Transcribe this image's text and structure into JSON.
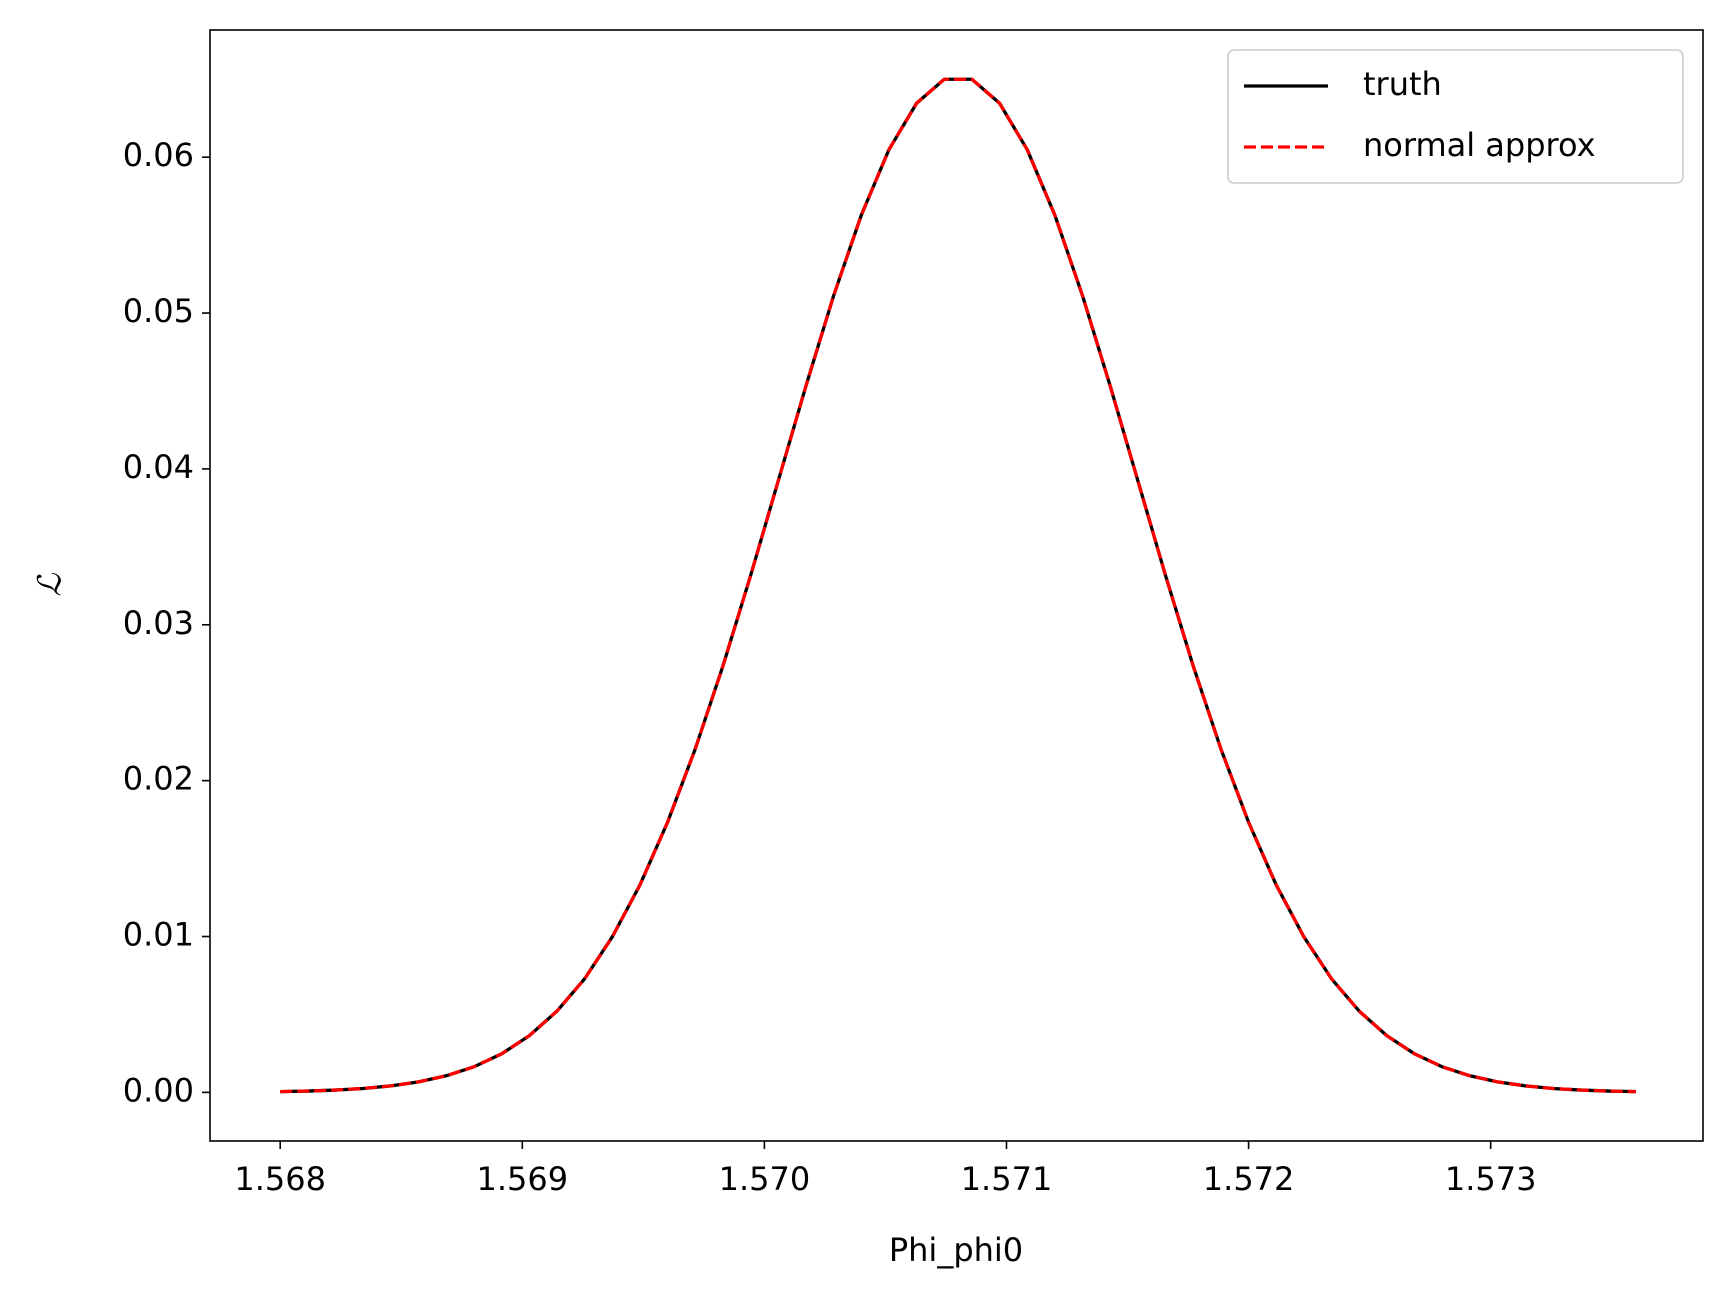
{
  "chart_data": {
    "type": "line",
    "xlabel": "Phi_phi0",
    "ylabel": "ℒ",
    "x": [
      1.568,
      1.5681143,
      1.5682286,
      1.5683429,
      1.5684571,
      1.5685714,
      1.5686857,
      1.5688,
      1.5689143,
      1.5690286,
      1.5691429,
      1.5692571,
      1.5693714,
      1.5694857,
      1.5696,
      1.5697143,
      1.5698286,
      1.5699429,
      1.5700571,
      1.5701714,
      1.5702857,
      1.5704,
      1.5705143,
      1.5706286,
      1.5707429,
      1.5708571,
      1.5709714,
      1.5710857,
      1.5712,
      1.5713143,
      1.5714286,
      1.5715429,
      1.5716571,
      1.5717714,
      1.5718857,
      1.572,
      1.5721143,
      1.5722286,
      1.5723429,
      1.5724571,
      1.5725714,
      1.5726857,
      1.5728,
      1.5729143,
      1.5730286,
      1.5731429,
      1.5732571,
      1.5733714,
      1.5734857,
      1.5736
    ],
    "series": [
      {
        "name": "truth",
        "color": "#000000",
        "dash": false,
        "values": [
          4.8e-05,
          8.5e-05,
          0.000148,
          0.000251,
          0.000417,
          0.000674,
          0.001064,
          0.00164,
          0.00247,
          0.00363,
          0.00521,
          0.00728,
          0.00997,
          0.0133,
          0.01733,
          0.02203,
          0.02735,
          0.03315,
          0.03923,
          0.04531,
          0.0511,
          0.05627,
          0.06048,
          0.06346,
          0.065,
          0.065,
          0.06346,
          0.06048,
          0.05627,
          0.0511,
          0.04531,
          0.03923,
          0.03315,
          0.02735,
          0.02203,
          0.01733,
          0.0133,
          0.00997,
          0.00728,
          0.00521,
          0.00363,
          0.00247,
          0.00164,
          0.001064,
          0.000674,
          0.000417,
          0.000251,
          0.000148,
          8.5e-05,
          4.8e-05
        ]
      },
      {
        "name": "normal approx",
        "color": "#ff0000",
        "dash": true,
        "values": [
          4.8e-05,
          8.5e-05,
          0.000148,
          0.000251,
          0.000417,
          0.000674,
          0.001064,
          0.00164,
          0.00247,
          0.00363,
          0.00521,
          0.00728,
          0.00997,
          0.0133,
          0.01733,
          0.02203,
          0.02735,
          0.03315,
          0.03923,
          0.04531,
          0.0511,
          0.05627,
          0.06048,
          0.06346,
          0.065,
          0.065,
          0.06346,
          0.06048,
          0.05627,
          0.0511,
          0.04531,
          0.03923,
          0.03315,
          0.02735,
          0.02203,
          0.01733,
          0.0133,
          0.00997,
          0.00728,
          0.00521,
          0.00363,
          0.00247,
          0.00164,
          0.001064,
          0.000674,
          0.000417,
          0.000251,
          0.000148,
          8.5e-05,
          4.8e-05
        ]
      }
    ],
    "xlim": [
      1.56771,
      1.573877
    ],
    "ylim": [
      -0.00312,
      0.06816
    ],
    "xticks": [
      1.568,
      1.569,
      {
        "value": 1.57,
        "label": "1.570"
      },
      1.571,
      1.572,
      1.573
    ],
    "yticks": [
      {
        "value": 0,
        "label": "0.00"
      },
      0.01,
      0.02,
      0.03,
      0.04,
      0.05,
      0.06
    ],
    "legend": "upper right",
    "grid": false
  }
}
